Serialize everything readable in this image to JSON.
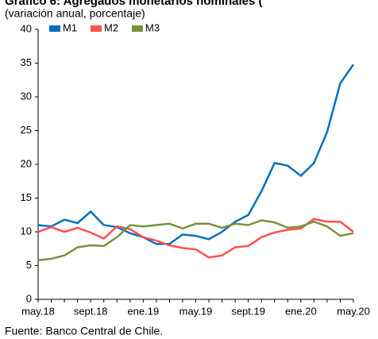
{
  "chart_data": {
    "type": "line",
    "title": "Gráfico 6: Agregados monetarios nominales (",
    "subtitle": "(variación anual, porcentaje)",
    "source": "Fuente: Banco Central de Chile.",
    "categories": [
      "may.18",
      null,
      null,
      null,
      "sept.18",
      null,
      null,
      null,
      "ene.19",
      null,
      null,
      null,
      "may.19",
      null,
      null,
      null,
      "sept.19",
      null,
      null,
      null,
      "ene.20",
      null,
      null,
      null,
      "may.20"
    ],
    "series": [
      {
        "name": "M1",
        "color": "#0070c0",
        "values": [
          11.0,
          10.8,
          11.8,
          11.3,
          13.0,
          11.0,
          10.7,
          9.8,
          9.2,
          8.2,
          8.2,
          9.6,
          9.4,
          8.9,
          10.0,
          11.5,
          12.5,
          16.0,
          20.2,
          19.8,
          18.3,
          20.2,
          24.8,
          32.0,
          34.8
        ]
      },
      {
        "name": "M2",
        "color": "#ff5050",
        "values": [
          10.0,
          10.7,
          10.0,
          10.6,
          9.9,
          9.0,
          10.8,
          10.4,
          9.2,
          8.7,
          8.0,
          7.6,
          7.4,
          6.2,
          6.5,
          7.7,
          7.9,
          9.2,
          9.9,
          10.3,
          10.5,
          11.9,
          11.5,
          11.5,
          10.0
        ]
      },
      {
        "name": "M3",
        "color": "#77933c",
        "values": [
          5.8,
          6.0,
          6.5,
          7.7,
          8.0,
          7.9,
          9.2,
          11.0,
          10.8,
          11.0,
          11.2,
          10.5,
          11.2,
          11.2,
          10.6,
          11.2,
          11.0,
          11.7,
          11.4,
          10.6,
          10.8,
          11.5,
          10.8,
          9.4,
          9.8
        ]
      }
    ],
    "ylim": [
      0,
      40
    ],
    "yticks": [
      0,
      5,
      10,
      15,
      20,
      25,
      30,
      35,
      40
    ],
    "grid": false
  }
}
